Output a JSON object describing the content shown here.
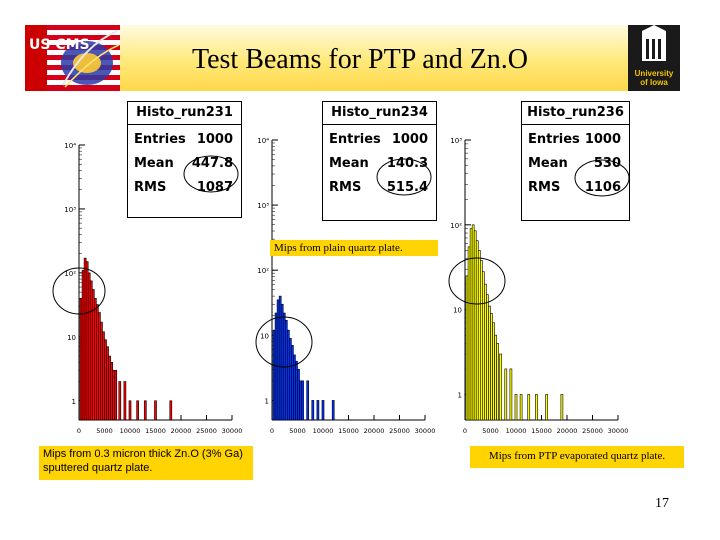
{
  "slide": {
    "title": "Test Beams for PTP and Zn.O",
    "page_number": "17",
    "logo_left_text": "US CMS",
    "logo_right_text": [
      "University",
      "of Iowa"
    ]
  },
  "notes": {
    "left": "Mips from 0.3 micron thick Zn.O (3% Ga) sputtered quartz plate.",
    "middle": "Mips from plain quartz plate.",
    "right": "Mips from PTP evaporated quartz plate."
  },
  "chart_data": [
    {
      "type": "bar",
      "title": "Histo_run231",
      "stats": {
        "entries_label": "Entries",
        "entries": "1000",
        "mean_label": "Mean",
        "mean": "447.8",
        "rms_label": "RMS",
        "rms": "1087"
      },
      "fill_color": "#ff0000",
      "y_scale": "log",
      "ylim": [
        0.5,
        10000
      ],
      "xlim": [
        0,
        30000
      ],
      "x_ticks": [
        "0",
        "5000",
        "10000",
        "15000",
        "20000",
        "25000",
        "30000"
      ],
      "y_tick_labels": [
        "1",
        "10",
        "10²",
        "10³",
        "10⁴"
      ],
      "x": [
        400,
        800,
        1200,
        1600,
        2000,
        2400,
        2800,
        3200,
        3600,
        4000,
        4400,
        4800,
        5200,
        5600,
        6000,
        6400,
        6800,
        7200,
        8000,
        9000,
        10000,
        11500,
        13000,
        15000,
        18000
      ],
      "values": [
        40,
        110,
        170,
        150,
        100,
        75,
        55,
        40,
        32,
        24,
        17,
        12,
        9,
        7,
        5,
        4,
        3,
        3,
        2,
        2,
        1,
        1,
        1,
        1,
        1
      ]
    },
    {
      "type": "bar",
      "title": "Histo_run234",
      "stats": {
        "entries_label": "Entries",
        "entries": "1000",
        "mean_label": "Mean",
        "mean": "140.3",
        "rms_label": "RMS",
        "rms": "515.4"
      },
      "fill_color": "#0033ff",
      "y_scale": "log",
      "ylim": [
        0.5,
        10000
      ],
      "xlim": [
        0,
        30000
      ],
      "x_ticks": [
        "0",
        "5000",
        "10000",
        "15000",
        "20000",
        "25000",
        "30000"
      ],
      "y_tick_labels": [
        "1",
        "10",
        "10²",
        "10³",
        "10⁴"
      ],
      "x": [
        400,
        800,
        1200,
        1600,
        2000,
        2400,
        2800,
        3200,
        3600,
        4000,
        4400,
        4800,
        5200,
        5600,
        6000,
        7000,
        8000,
        9000,
        10000,
        12000
      ],
      "values": [
        12,
        22,
        35,
        40,
        30,
        22,
        17,
        12,
        9,
        7,
        5,
        4,
        3,
        2,
        2,
        2,
        1,
        1,
        1,
        1
      ]
    },
    {
      "type": "bar",
      "title": "Histo_run236",
      "stats": {
        "entries_label": "Entries",
        "entries": "1000",
        "mean_label": "Mean",
        "mean": "530",
        "rms_label": "RMS",
        "rms": "1106"
      },
      "fill_color": "#ffff00",
      "y_scale": "log",
      "ylim": [
        0.5,
        1000
      ],
      "xlim": [
        0,
        30000
      ],
      "x_ticks": [
        "0",
        "5000",
        "10000",
        "15000",
        "20000",
        "25000",
        "30000"
      ],
      "y_tick_labels": [
        "1",
        "10",
        "10²",
        "10³"
      ],
      "x": [
        400,
        800,
        1200,
        1600,
        2000,
        2400,
        2800,
        3200,
        3600,
        4000,
        4400,
        4800,
        5200,
        5600,
        6000,
        6400,
        7000,
        8000,
        9000,
        10000,
        11000,
        12500,
        14000,
        16000,
        19000
      ],
      "values": [
        25,
        55,
        90,
        100,
        85,
        65,
        50,
        38,
        28,
        20,
        15,
        11,
        9,
        7,
        5,
        4,
        3,
        2,
        2,
        1,
        1,
        1,
        1,
        1,
        1
      ]
    }
  ]
}
